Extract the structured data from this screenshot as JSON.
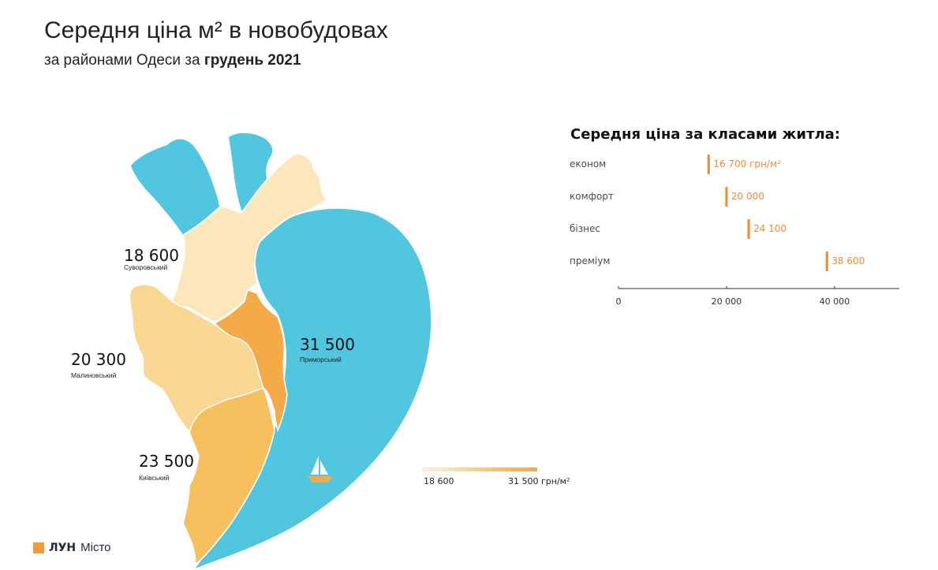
{
  "header": {
    "title": "Середня ціна м² в новобудовах",
    "subtitle_prefix": "за районами Одеси за ",
    "subtitle_period": "грудень 2021"
  },
  "chart_data": [
    {
      "type": "choropleth-map",
      "unit": "грн/м²",
      "districts": [
        {
          "id": "suvorovskyi",
          "name": "Суворовський",
          "value": 18600,
          "value_label": "18 600",
          "color": "#fbe7bb"
        },
        {
          "id": "malynovskyi",
          "name": "Малиновський",
          "value": 20300,
          "value_label": "20 300",
          "color": "#f9d692"
        },
        {
          "id": "kyivskyi",
          "name": "Київський",
          "value": 23500,
          "value_label": "23 500",
          "color": "#f7bf5d"
        },
        {
          "id": "prymorskyi",
          "name": "Приморський",
          "value": 31500,
          "value_label": "31 500",
          "color": "#f3aa47"
        }
      ],
      "water_color": "#53c6df",
      "legend": {
        "min_label": "18 600",
        "max_label": "31 500 грн/м²",
        "color_min": "#fdf0d8",
        "color_max": "#f3a640"
      }
    },
    {
      "type": "bar",
      "title": "Середня ціна за класами житла:",
      "categories": [
        "економ",
        "комфорт",
        "бізнес",
        "преміум"
      ],
      "values": [
        16700,
        20000,
        24100,
        38600
      ],
      "value_labels": [
        "16 700 грн/м²",
        "20 000",
        "24 100",
        "38 600"
      ],
      "xlim": [
        0,
        52000
      ],
      "ticks": [
        0,
        20000,
        40000
      ],
      "tick_labels": [
        "0",
        "20 000",
        "40 000"
      ],
      "bar_color": "#f08a35"
    }
  ],
  "branding": {
    "logo_text": "ЛУН",
    "logo_sub": "Місто",
    "logo_color": "#f39a3b"
  }
}
